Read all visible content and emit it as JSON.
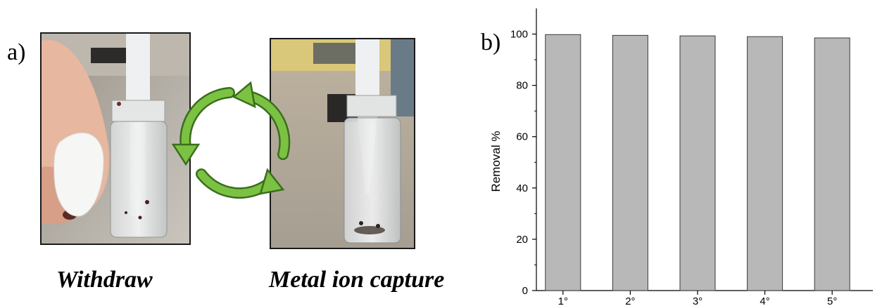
{
  "panel_a": {
    "label": "a)",
    "left_caption": "Withdraw",
    "right_caption": "Metal ion capture"
  },
  "panel_b": {
    "label": "b)"
  },
  "colors": {
    "bar_fill": "#b8b8b8",
    "bar_stroke": "#3a3a3a",
    "arrow_green": "#7cc242",
    "arrow_dark": "#3b6e1d"
  },
  "icons": {
    "cycle": "recycle-arrows-icon"
  },
  "chart_data": {
    "type": "bar",
    "categories": [
      "1°",
      "2°",
      "3°",
      "4°",
      "5°"
    ],
    "values": [
      99.8,
      99.5,
      99.3,
      99.0,
      98.5
    ],
    "xlabel": "",
    "ylabel": "Removal %",
    "ylim": [
      0,
      110
    ],
    "yticks": [
      0,
      20,
      40,
      60,
      80,
      100
    ],
    "grid": false
  }
}
